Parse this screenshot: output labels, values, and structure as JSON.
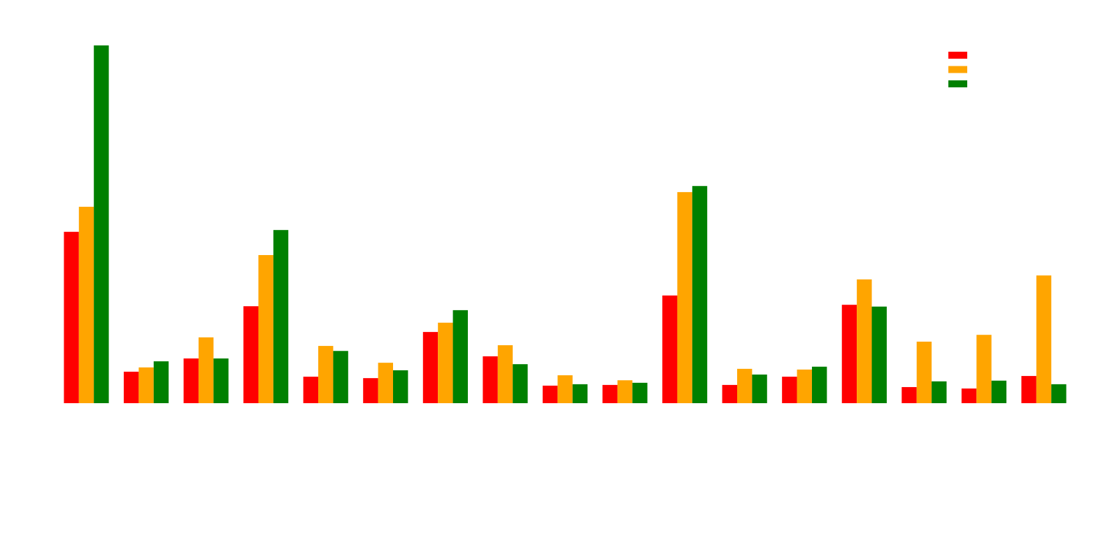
{
  "chart_data": {
    "type": "bar",
    "categories": [
      null,
      null,
      null,
      null,
      null,
      null,
      null,
      null,
      null,
      null,
      null,
      null,
      null,
      null,
      null,
      null,
      null
    ],
    "series": [
      {
        "color": "#ff0000",
        "values": [
          47.9,
          8.8,
          12.5,
          27.1,
          7.4,
          7.0,
          19.9,
          13.1,
          4.9,
          5.1,
          30.1,
          5.1,
          7.4,
          27.5,
          4.5,
          4.1,
          7.6
        ]
      },
      {
        "color": "#ffa500",
        "values": [
          54.9,
          10.0,
          18.4,
          41.4,
          16.0,
          11.3,
          22.5,
          16.2,
          7.8,
          6.4,
          59.0,
          9.6,
          9.4,
          34.6,
          17.2,
          19.1,
          35.7
        ]
      },
      {
        "color": "#008000",
        "values": [
          100,
          11.7,
          12.5,
          48.4,
          14.6,
          9.2,
          26.0,
          10.9,
          5.3,
          5.7,
          60.7,
          8.0,
          10.2,
          27.0,
          6.1,
          6.3,
          5.3
        ]
      }
    ],
    "ylim": [
      0,
      100
    ],
    "legend": "upper right"
  }
}
